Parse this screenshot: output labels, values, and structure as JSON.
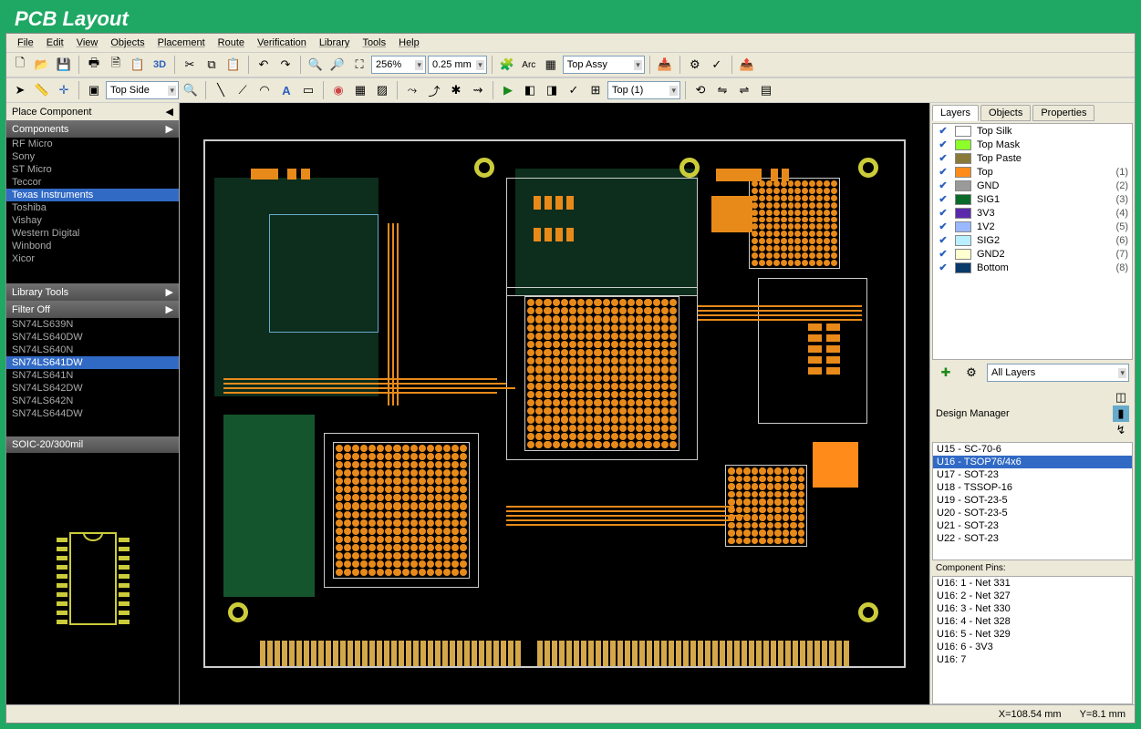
{
  "app_title": "PCB Layout",
  "menu": [
    "File",
    "Edit",
    "View",
    "Objects",
    "Placement",
    "Route",
    "Verification",
    "Library",
    "Tools",
    "Help"
  ],
  "toolbar1": {
    "zoom_pct": "256%",
    "grid": "0.25 mm",
    "label_arc": "Arc",
    "layer_combo": "Top Assy",
    "btn_3d": "3D"
  },
  "toolbar2": {
    "side_combo": "Top Side",
    "layer2_combo": "Top (1)"
  },
  "left": {
    "place_header": "Place Component",
    "components_header": "Components",
    "manufacturers": [
      {
        "name": "RF Micro",
        "sel": false
      },
      {
        "name": "Sony",
        "sel": false
      },
      {
        "name": "ST Micro",
        "sel": false
      },
      {
        "name": "Teccor",
        "sel": false
      },
      {
        "name": "Texas Instruments",
        "sel": true
      },
      {
        "name": "Toshiba",
        "sel": false
      },
      {
        "name": "Vishay",
        "sel": false
      },
      {
        "name": "Western Digital",
        "sel": false
      },
      {
        "name": "Winbond",
        "sel": false
      },
      {
        "name": "Xicor",
        "sel": false
      }
    ],
    "libtools_header": "Library Tools",
    "filter_header": "Filter Off",
    "parts": [
      {
        "name": "SN74LS639N",
        "sel": false
      },
      {
        "name": "SN74LS640DW",
        "sel": false
      },
      {
        "name": "SN74LS640N",
        "sel": false
      },
      {
        "name": "SN74LS641DW",
        "sel": true
      },
      {
        "name": "SN74LS641N",
        "sel": false
      },
      {
        "name": "SN74LS642DW",
        "sel": false
      },
      {
        "name": "SN74LS642N",
        "sel": false
      },
      {
        "name": "SN74LS644DW",
        "sel": false
      }
    ],
    "package": "SOIC-20/300mil"
  },
  "right": {
    "tabs": [
      "Layers",
      "Objects",
      "Properties"
    ],
    "layers": [
      {
        "name": "Top Silk",
        "color": "#ffffff",
        "idx": ""
      },
      {
        "name": "Top Mask",
        "color": "#8cff2a",
        "idx": ""
      },
      {
        "name": "Top Paste",
        "color": "#8a7a3a",
        "idx": ""
      },
      {
        "name": "Top",
        "color": "#ff8c1a",
        "idx": "(1)"
      },
      {
        "name": "GND",
        "color": "#9a9a9a",
        "idx": "(2)"
      },
      {
        "name": "SIG1",
        "color": "#0a6a2a",
        "idx": "(3)"
      },
      {
        "name": "3V3",
        "color": "#5a2aaa",
        "idx": "(4)"
      },
      {
        "name": "1V2",
        "color": "#9ab8ff",
        "idx": "(5)"
      },
      {
        "name": "SIG2",
        "color": "#b8f0ff",
        "idx": "(6)"
      },
      {
        "name": "GND2",
        "color": "#ffffd0",
        "idx": "(7)"
      },
      {
        "name": "Bottom",
        "color": "#0a3a6a",
        "idx": "(8)"
      }
    ],
    "layer_filter": "All Layers",
    "dm_header": "Design Manager",
    "components": [
      {
        "name": "U15 - SC-70-6",
        "sel": false
      },
      {
        "name": "U16 - TSOP76/4x6",
        "sel": true
      },
      {
        "name": "U17 - SOT-23",
        "sel": false
      },
      {
        "name": "U18 - TSSOP-16",
        "sel": false
      },
      {
        "name": "U19 - SOT-23-5",
        "sel": false
      },
      {
        "name": "U20 - SOT-23-5",
        "sel": false
      },
      {
        "name": "U21 - SOT-23",
        "sel": false
      },
      {
        "name": "U22 - SOT-23",
        "sel": false
      }
    ],
    "pins_header": "Component Pins:",
    "pins": [
      "U16: 1 - Net 331",
      "U16: 2 - Net 327",
      "U16: 3 - Net 330",
      "U16: 4 - Net 328",
      "U16: 5 - Net 329",
      "U16: 6 - 3V3",
      "U16: 7"
    ]
  },
  "status": {
    "x": "X=108.54 mm",
    "y": "Y=8.1 mm"
  },
  "colors": {
    "sel_bg": "#316ac5",
    "copper": "#e88a1a",
    "silk": "#cccccc",
    "gold": "#d4a84a",
    "green": "#1a7a4a"
  }
}
